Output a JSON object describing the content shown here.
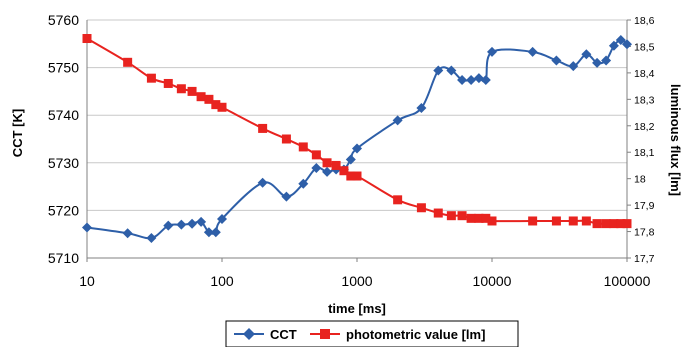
{
  "chart_data": {
    "type": "line",
    "title": "",
    "xlabel": "time [ms]",
    "ylabel_left": "CCT [K]",
    "ylabel_right": "luminous flux [lm]",
    "x_scale": "log",
    "xlim": [
      10,
      100000
    ],
    "ylim_left": [
      5710,
      5760
    ],
    "ylim_right": [
      17.7,
      18.6
    ],
    "x_ticks": [
      "10",
      "100",
      "1000",
      "10000",
      "100000"
    ],
    "y_ticks_left": [
      "5710",
      "5720",
      "5730",
      "5740",
      "5750",
      "5760"
    ],
    "y_ticks_right": [
      "17,7",
      "17,8",
      "17,9",
      "18",
      "18,1",
      "18,2",
      "18,3",
      "18,4",
      "18,5",
      "18,6"
    ],
    "grid": "horizontal",
    "legend_position": "bottom",
    "series": [
      {
        "name": "CCT",
        "axis": "left",
        "color": "#2e5fa8",
        "marker": "diamond",
        "x": [
          10,
          20,
          30,
          40,
          50,
          60,
          70,
          80,
          90,
          100,
          200,
          300,
          400,
          500,
          600,
          700,
          800,
          900,
          1000,
          2000,
          3000,
          4000,
          5000,
          6000,
          7000,
          8000,
          9000,
          10000,
          20000,
          30000,
          40000,
          50000,
          60000,
          70000,
          80000,
          90000,
          100000
        ],
        "y": [
          5716.4,
          5715.2,
          5714.2,
          5716.8,
          5717.0,
          5717.2,
          5717.6,
          5715.4,
          5715.4,
          5718.2,
          5725.8,
          5722.9,
          5725.6,
          5728.9,
          5728.1,
          5728.6,
          5728.6,
          5730.7,
          5733.0,
          5738.9,
          5741.5,
          5749.4,
          5749.4,
          5747.4,
          5747.4,
          5747.8,
          5747.4,
          5753.3,
          5753.3,
          5751.5,
          5750.3,
          5752.8,
          5751.0,
          5751.5,
          5754.6,
          5755.8,
          5754.9
        ]
      },
      {
        "name": "photometric value [lm]",
        "axis": "right",
        "color": "#e8231f",
        "marker": "square",
        "x": [
          10,
          20,
          30,
          40,
          50,
          60,
          70,
          80,
          90,
          100,
          200,
          300,
          400,
          500,
          600,
          700,
          800,
          900,
          1000,
          2000,
          3000,
          4000,
          5000,
          6000,
          7000,
          8000,
          9000,
          10000,
          20000,
          30000,
          40000,
          50000,
          60000,
          70000,
          80000,
          90000,
          100000
        ],
        "y": [
          18.53,
          18.44,
          18.38,
          18.36,
          18.34,
          18.33,
          18.31,
          18.3,
          18.28,
          18.27,
          18.19,
          18.15,
          18.12,
          18.09,
          18.06,
          18.05,
          18.03,
          18.01,
          18.01,
          17.92,
          17.89,
          17.87,
          17.86,
          17.86,
          17.85,
          17.85,
          17.85,
          17.84,
          17.84,
          17.84,
          17.84,
          17.84,
          17.83,
          17.83,
          17.83,
          17.83,
          17.83
        ]
      }
    ]
  }
}
